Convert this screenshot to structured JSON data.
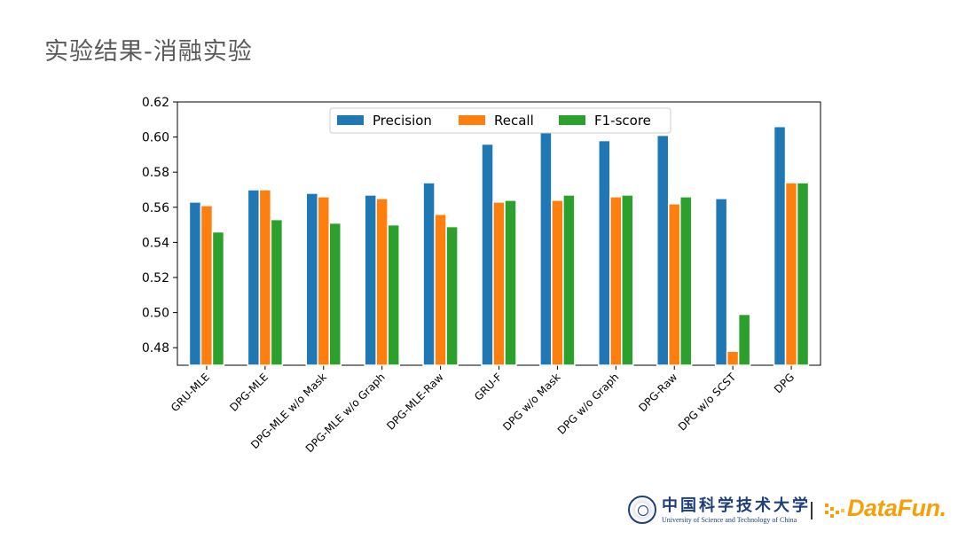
{
  "slide": {
    "title": "实验结果-消融实验"
  },
  "chart_data": {
    "type": "bar",
    "categories": [
      "GRU-MLE",
      "DPG-MLE",
      "DPG-MLE w/o Mask",
      "DPG-MLE w/o Graph",
      "DPG-MLE-Raw",
      "GRU-F",
      "DPG w/o Mask",
      "DPG w/o Graph",
      "DPG-Raw",
      "DPG w/o SCST",
      "DPG"
    ],
    "series": [
      {
        "name": "Precision",
        "color": "#1f77b4",
        "values": [
          0.563,
          0.57,
          0.568,
          0.567,
          0.574,
          0.596,
          0.603,
          0.598,
          0.601,
          0.565,
          0.606
        ]
      },
      {
        "name": "Recall",
        "color": "#ff7f0e",
        "values": [
          0.561,
          0.57,
          0.566,
          0.565,
          0.556,
          0.563,
          0.564,
          0.566,
          0.562,
          0.478,
          0.574
        ]
      },
      {
        "name": "F1-score",
        "color": "#2ca02c",
        "values": [
          0.546,
          0.553,
          0.551,
          0.55,
          0.549,
          0.564,
          0.567,
          0.567,
          0.566,
          0.499,
          0.574
        ]
      }
    ],
    "ylim": [
      0.47,
      0.62
    ],
    "yticks": [
      "0.48",
      "0.50",
      "0.52",
      "0.54",
      "0.56",
      "0.58",
      "0.60",
      "0.62"
    ],
    "legend_position": "top-center",
    "grid": false
  },
  "footer": {
    "university_cn": "中国科学技术大学",
    "university_en": "University of Science and Technology of China",
    "brand": "DataFun."
  }
}
